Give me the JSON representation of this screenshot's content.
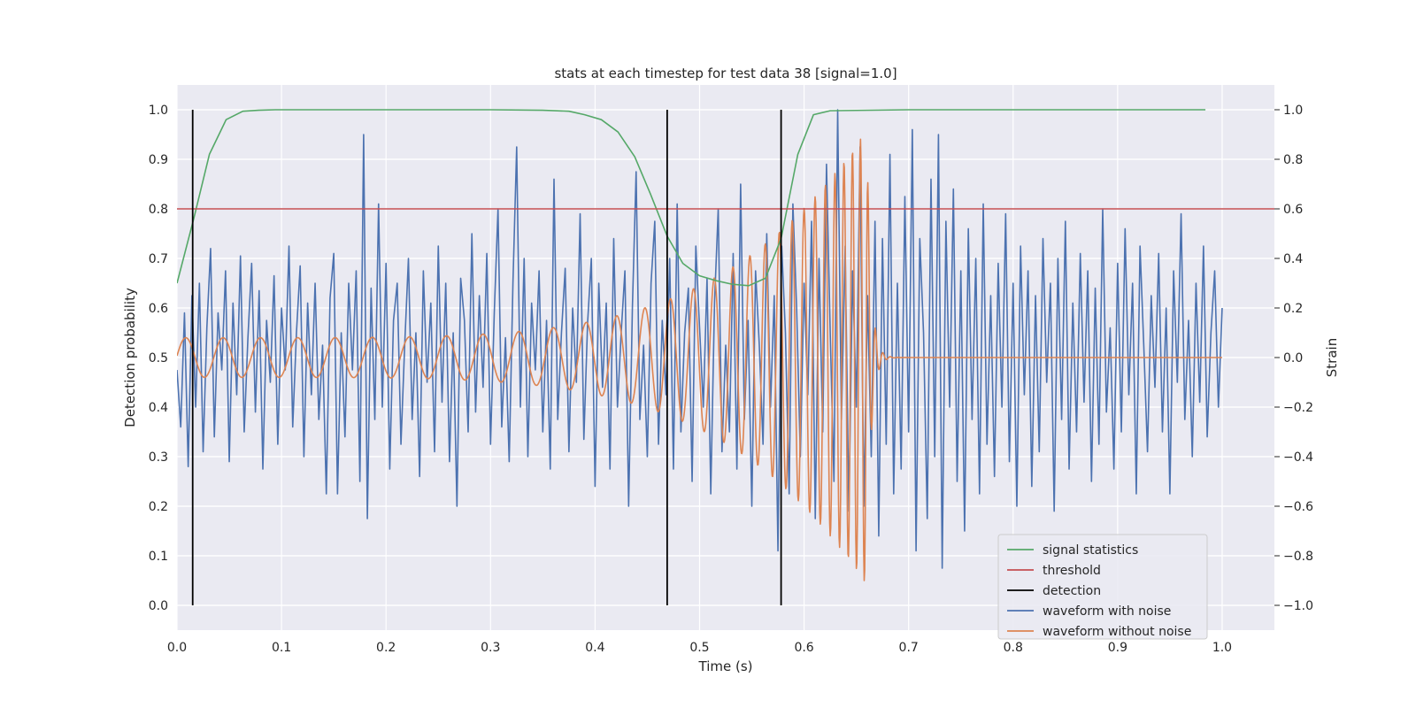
{
  "chart_data": {
    "type": "line",
    "title": "stats at each timestep for test data 38 [signal=1.0]",
    "xlabel": "Time (s)",
    "ylabel": "Detection probability",
    "y2label": "Strain",
    "xlim": [
      0.0,
      1.05
    ],
    "ylim": [
      -0.05,
      1.05
    ],
    "y2lim": [
      -1.1,
      1.1
    ],
    "xticks": [
      "0.0",
      "0.1",
      "0.2",
      "0.3",
      "0.4",
      "0.5",
      "0.6",
      "0.7",
      "0.8",
      "0.9",
      "1.0"
    ],
    "yticks": [
      "0.0",
      "0.1",
      "0.2",
      "0.3",
      "0.4",
      "0.5",
      "0.6",
      "0.7",
      "0.8",
      "0.9",
      "1.0"
    ],
    "y2ticks": [
      "−1.0",
      "−0.8",
      "−0.6",
      "−0.4",
      "−0.2",
      "0.0",
      "0.2",
      "0.4",
      "0.6",
      "0.8",
      "1.0"
    ],
    "grid": true,
    "legend_position": "lower-right",
    "colors": {
      "signal_statistics": "#55a868",
      "threshold": "#c44e52",
      "detection": "#000000",
      "waveform_with_noise": "#4c72b0",
      "waveform_without_noise": "#dd8452",
      "background": "#eaeaf2"
    },
    "series": [
      {
        "name": "signal statistics",
        "axis": "left",
        "x": [
          0.0,
          0.016,
          0.031,
          0.047,
          0.063,
          0.078,
          0.094,
          0.11,
          0.2,
          0.3,
          0.35,
          0.375,
          0.39,
          0.406,
          0.422,
          0.438,
          0.453,
          0.469,
          0.484,
          0.5,
          0.516,
          0.531,
          0.547,
          0.563,
          0.578,
          0.594,
          0.609,
          0.625,
          0.7,
          0.8,
          0.9,
          0.984
        ],
        "y": [
          0.65,
          0.78,
          0.91,
          0.98,
          0.997,
          0.999,
          1.0,
          1.0,
          1.0,
          1.0,
          0.999,
          0.997,
          0.99,
          0.98,
          0.955,
          0.905,
          0.83,
          0.745,
          0.69,
          0.665,
          0.655,
          0.648,
          0.645,
          0.66,
          0.74,
          0.91,
          0.99,
          0.998,
          1.0,
          1.0,
          1.0,
          1.0
        ]
      },
      {
        "name": "threshold",
        "axis": "left",
        "x": [
          0.0,
          1.05
        ],
        "y": [
          0.8,
          0.8
        ]
      },
      {
        "name": "detection",
        "axis": "left",
        "vlines": [
          0.015,
          0.469,
          0.578
        ],
        "ymin": 0.0,
        "ymax": 1.0
      },
      {
        "name": "waveform with noise",
        "axis": "right",
        "x_range": [
          0.0,
          1.0
        ],
        "y": [
          -0.05,
          -0.28,
          0.18,
          -0.44,
          0.25,
          -0.2,
          0.3,
          -0.38,
          0.12,
          0.44,
          -0.32,
          0.18,
          -0.05,
          0.35,
          -0.42,
          0.22,
          -0.15,
          0.41,
          -0.3,
          0.08,
          0.38,
          -0.22,
          0.27,
          -0.45,
          0.15,
          -0.1,
          0.33,
          -0.35,
          0.2,
          -0.05,
          0.45,
          -0.28,
          0.1,
          0.37,
          -0.4,
          0.22,
          -0.15,
          0.3,
          -0.25,
          0.05,
          -0.55,
          0.24,
          0.42,
          -0.55,
          0.1,
          -0.32,
          0.3,
          -0.05,
          0.35,
          -0.5,
          0.9,
          -0.65,
          0.28,
          -0.25,
          0.62,
          -0.2,
          0.38,
          -0.45,
          0.15,
          0.3,
          -0.35,
          0.05,
          0.4,
          -0.25,
          0.1,
          -0.48,
          0.35,
          -0.1,
          0.22,
          -0.38,
          0.45,
          -0.18,
          0.3,
          -0.42,
          0.1,
          -0.6,
          0.32,
          0.15,
          -0.3,
          0.5,
          -0.22,
          0.25,
          -0.12,
          0.42,
          -0.35,
          0.18,
          0.6,
          -0.28,
          0.08,
          -0.42,
          0.3,
          0.85,
          -0.2,
          0.4,
          -0.4,
          0.22,
          -0.05,
          0.35,
          -0.3,
          0.15,
          -0.45,
          0.72,
          -0.25,
          0.1,
          0.36,
          -0.38,
          0.2,
          -0.1,
          0.58,
          -0.33,
          0.14,
          0.4,
          -0.52,
          0.3,
          -0.12,
          0.22,
          -0.45,
          0.48,
          -0.2,
          0.1,
          0.35,
          -0.6,
          0.2,
          0.75,
          -0.25,
          0.05,
          -0.4,
          0.3,
          0.55,
          -0.35,
          0.15,
          -0.15,
          0.4,
          -0.45,
          0.62,
          -0.3,
          0.1,
          0.28,
          -0.5,
          0.45,
          0.12,
          -0.2,
          0.32,
          -0.55,
          0.22,
          0.6,
          -0.38,
          0.05,
          -0.3,
          0.42,
          -0.45,
          0.7,
          -0.25,
          0.15,
          -0.6,
          0.35,
          0.05,
          -0.35,
          0.5,
          -0.2,
          0.25,
          -0.78,
          0.45,
          0.1,
          -0.55,
          0.62,
          0.2,
          -0.4,
          0.3,
          -0.15,
          0.55,
          -0.65,
          0.4,
          -0.3,
          0.78,
          0.1,
          -0.5,
          1.0,
          -0.25,
          0.45,
          -0.62,
          0.35,
          -0.2,
          0.85,
          -0.6,
          0.25,
          -0.4,
          0.55,
          -0.72,
          0.48,
          -0.35,
          0.82,
          -0.55,
          0.3,
          -0.45,
          0.65,
          -0.3,
          0.92,
          -0.78,
          0.48,
          0.1,
          -0.65,
          0.72,
          -0.4,
          0.9,
          -0.85,
          0.55,
          -0.2,
          0.68,
          -0.5,
          0.35,
          -0.7,
          0.52,
          -0.25,
          0.4,
          -0.55,
          0.62,
          -0.35,
          0.25,
          -0.48,
          0.38,
          -0.2,
          0.58,
          -0.42,
          0.3,
          -0.6,
          0.45,
          -0.15,
          0.35,
          -0.52,
          0.25,
          -0.38,
          0.48,
          -0.1,
          0.3,
          -0.62,
          0.4,
          -0.25,
          0.55,
          -0.45,
          0.22,
          -0.3,
          0.42,
          -0.18,
          0.35,
          -0.5,
          0.28,
          -0.35,
          0.6,
          -0.22,
          0.12,
          -0.45,
          0.38,
          -0.3,
          0.52,
          -0.15,
          0.3,
          -0.55,
          0.45,
          0.05,
          -0.38,
          0.25,
          -0.12,
          0.42,
          -0.3,
          0.2,
          -0.55,
          0.35,
          -0.1,
          0.58,
          -0.25,
          0.15,
          -0.4,
          0.3,
          -0.18,
          0.45,
          -0.32,
          0.1,
          0.35,
          -0.2,
          0.2
        ]
      },
      {
        "name": "waveform without noise",
        "axis": "right",
        "chirp": {
          "t_merge": 0.66,
          "f0_hz": 28,
          "f_merge_hz": 140,
          "amp0": 0.08,
          "amp_merge": 0.92,
          "end": 1.0
        }
      }
    ],
    "legend": [
      "signal statistics",
      "threshold",
      "detection",
      "waveform with noise",
      "waveform without noise"
    ]
  }
}
